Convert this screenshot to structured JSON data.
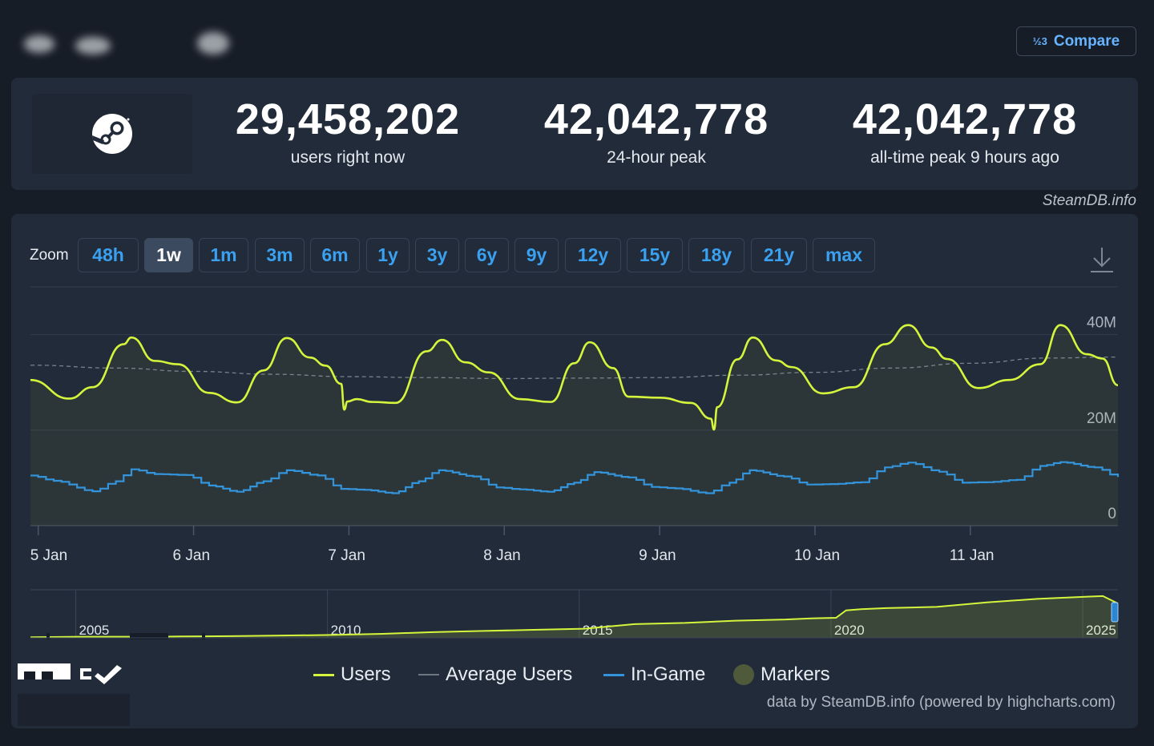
{
  "header": {
    "compare_label": "Compare",
    "compare_icon": "½3"
  },
  "stats": [
    {
      "value": "29,458,202",
      "label": "users right now"
    },
    {
      "value": "42,042,778",
      "label": "24-hour peak"
    },
    {
      "value": "42,042,778",
      "label": "all-time peak 9 hours ago"
    }
  ],
  "credit_top": "SteamDB.info",
  "zoom": {
    "label": "Zoom",
    "options": [
      "48h",
      "1w",
      "1m",
      "3m",
      "6m",
      "1y",
      "3y",
      "6y",
      "9y",
      "12y",
      "15y",
      "18y",
      "21y",
      "max"
    ],
    "active": "1w"
  },
  "legend": {
    "users": "Users",
    "average": "Average Users",
    "ingame": "In-Game",
    "markers": "Markers"
  },
  "credit_bottom": "data by SteamDB.info (powered by highcharts.com)",
  "colors": {
    "users": "#d4f53c",
    "ingame": "#3394dc",
    "average": "#8f98a3",
    "background": "#171d27",
    "panel": "#222b39",
    "accent": "#66b3ff"
  },
  "chart_data": {
    "type": "line",
    "title": "",
    "xlabel": "",
    "ylabel": "",
    "ylim": [
      0,
      50000000
    ],
    "y_tick_labels": [
      "0",
      "20M",
      "40M"
    ],
    "x_tick_labels": [
      "5 Jan",
      "6 Jan",
      "7 Jan",
      "8 Jan",
      "9 Jan",
      "10 Jan",
      "11 Jan"
    ],
    "x_start_day": 4.95,
    "x_end_day": 11.95,
    "series": [
      {
        "name": "Users",
        "x_day": [
          4.95,
          5.2,
          5.35,
          5.55,
          5.6,
          5.75,
          5.9,
          6.1,
          6.28,
          6.45,
          6.6,
          6.75,
          6.85,
          6.95,
          6.97,
          6.99,
          7.05,
          7.15,
          7.3,
          7.5,
          7.6,
          7.75,
          7.9,
          8.1,
          8.3,
          8.45,
          8.55,
          8.7,
          8.8,
          9.0,
          9.2,
          9.33,
          9.35,
          9.37,
          9.5,
          9.6,
          9.75,
          9.85,
          10.05,
          10.25,
          10.45,
          10.6,
          10.75,
          10.85,
          11.05,
          11.25,
          11.45,
          11.58,
          11.75,
          11.85,
          11.95
        ],
        "values": [
          30500000,
          26600000,
          29000000,
          38000000,
          39400000,
          34500000,
          33800000,
          27800000,
          25800000,
          32500000,
          39300000,
          35200000,
          33500000,
          29700000,
          24300000,
          26000000,
          26500000,
          25900000,
          25700000,
          36500000,
          38900000,
          34200000,
          32100000,
          26500000,
          25900000,
          34000000,
          38400000,
          33000000,
          27000000,
          26800000,
          25700000,
          22400000,
          20100000,
          24800000,
          34800000,
          39400000,
          34600000,
          33200000,
          27700000,
          29000000,
          38000000,
          42000000,
          37300000,
          34900000,
          28800000,
          30500000,
          33800000,
          42000000,
          35900000,
          35000000,
          29400000
        ]
      },
      {
        "name": "Average Users",
        "x_day": [
          4.95,
          5.5,
          6.0,
          6.5,
          7.0,
          7.5,
          8.0,
          8.5,
          9.0,
          9.5,
          10.0,
          10.5,
          11.0,
          11.5,
          11.95
        ],
        "values": [
          33600000,
          33000000,
          32300000,
          31700000,
          31200000,
          31000000,
          30800000,
          30900000,
          31000000,
          31500000,
          32100000,
          33000000,
          34000000,
          35100000,
          35300000
        ]
      },
      {
        "name": "In-Game",
        "x_day": [
          4.95,
          5.1,
          5.35,
          5.5,
          5.6,
          5.75,
          5.95,
          6.1,
          6.28,
          6.45,
          6.6,
          6.8,
          6.95,
          7.1,
          7.28,
          7.45,
          7.58,
          7.8,
          7.95,
          8.1,
          8.28,
          8.45,
          8.58,
          8.8,
          8.95,
          9.1,
          9.3,
          9.45,
          9.58,
          9.8,
          9.95,
          10.1,
          10.3,
          10.45,
          10.6,
          10.8,
          10.95,
          11.1,
          11.3,
          11.45,
          11.58,
          11.8,
          11.95
        ],
        "values": [
          10500000,
          9400000,
          7200000,
          9300000,
          11800000,
          10800000,
          10600000,
          8400000,
          7100000,
          9300000,
          11600000,
          10500000,
          7700000,
          7500000,
          6800000,
          9300000,
          11600000,
          10300000,
          8000000,
          7600000,
          7100000,
          9000000,
          11200000,
          10100000,
          8100000,
          7800000,
          6800000,
          9000000,
          11600000,
          10300000,
          8600000,
          8700000,
          9100000,
          12200000,
          13200000,
          11300000,
          9000000,
          9100000,
          9600000,
          12500000,
          13300000,
          12200000,
          10200000
        ]
      }
    ],
    "navigator": {
      "x_tick_labels": [
        "2005",
        "2010",
        "2015",
        "2020",
        "2025"
      ],
      "x_year": [
        2004,
        2005,
        2005.5,
        2006.5,
        2007,
        2008,
        2009,
        2010,
        2011,
        2012,
        2013,
        2014,
        2015,
        2015.5,
        2016,
        2017,
        2018,
        2019,
        2019.5,
        2020.0,
        2020.2,
        2020.5,
        2021,
        2022,
        2023,
        2024,
        2024.5,
        2025,
        2025.3,
        2025.6
      ],
      "values": [
        500000,
        1000000,
        1000000,
        1000000,
        1200000,
        1500000,
        2000000,
        2500000,
        3500000,
        5000000,
        6000000,
        7000000,
        8000000,
        10000000,
        12000000,
        13000000,
        15000000,
        16000000,
        17000000,
        17500000,
        24000000,
        25000000,
        26000000,
        27000000,
        31000000,
        34000000,
        35000000,
        36000000,
        36500000,
        30000000
      ]
    }
  }
}
